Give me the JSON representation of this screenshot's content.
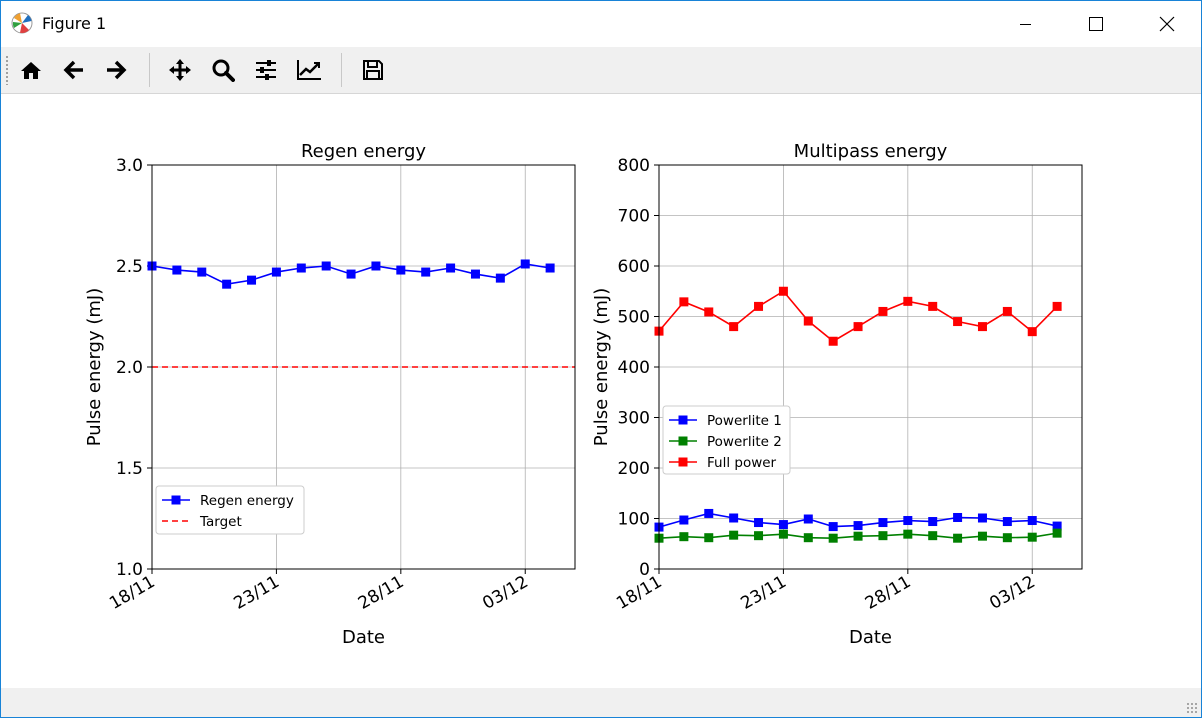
{
  "window": {
    "title": "Figure 1",
    "app_icon": "matplotlib-icon",
    "controls": [
      "minimize-icon",
      "maximize-icon",
      "close-icon"
    ]
  },
  "toolbar": {
    "buttons": [
      {
        "name": "home-button",
        "icon": "home-icon"
      },
      {
        "name": "back-button",
        "icon": "arrow-left-icon"
      },
      {
        "name": "forward-button",
        "icon": "arrow-right-icon"
      },
      {
        "name": "pan-button",
        "icon": "move-icon"
      },
      {
        "name": "zoom-button",
        "icon": "magnifier-icon"
      },
      {
        "name": "subplots-button",
        "icon": "sliders-icon"
      },
      {
        "name": "customize-button",
        "icon": "line-chart-icon"
      },
      {
        "name": "save-button",
        "icon": "floppy-disk-icon"
      }
    ]
  },
  "chart_data": [
    {
      "type": "line",
      "title": "Regen energy",
      "xlabel": "Date",
      "ylabel": "Pulse energy (mJ)",
      "x_ticks": [
        "18/11",
        "23/11",
        "28/11",
        "03/12"
      ],
      "x_start": "18/11",
      "x_end": "04/12",
      "ylim": [
        1.0,
        3.0
      ],
      "y_ticks": [
        "1.0",
        "1.5",
        "2.0",
        "2.5",
        "3.0"
      ],
      "grid": true,
      "legend_position": "lower-left",
      "x": [
        "18/11",
        "19/11",
        "20/11",
        "21/11",
        "22/11",
        "23/11",
        "24/11",
        "25/11",
        "26/11",
        "27/11",
        "28/11",
        "29/11",
        "30/11",
        "01/12",
        "02/12",
        "03/12",
        "04/12"
      ],
      "series": [
        {
          "name": "Regen energy",
          "color": "#0000ff",
          "style": "line-square",
          "values": [
            2.5,
            2.48,
            2.47,
            2.41,
            2.43,
            2.47,
            2.49,
            2.5,
            2.46,
            2.5,
            2.48,
            2.47,
            2.49,
            2.46,
            2.44,
            2.51,
            2.49
          ]
        }
      ],
      "reference_lines": [
        {
          "name": "Target",
          "color": "#ff0000",
          "style": "dashed",
          "y": 2.0
        }
      ]
    },
    {
      "type": "line",
      "title": "Multipass energy",
      "xlabel": "Date",
      "ylabel": "Pulse energy (mJ)",
      "x_ticks": [
        "18/11",
        "23/11",
        "28/11",
        "03/12"
      ],
      "x_start": "18/11",
      "x_end": "04/12",
      "ylim": [
        0,
        800
      ],
      "y_ticks": [
        "0",
        "100",
        "200",
        "300",
        "400",
        "500",
        "600",
        "700",
        "800"
      ],
      "grid": true,
      "legend_position": "center-left",
      "x": [
        "18/11",
        "19/11",
        "20/11",
        "21/11",
        "22/11",
        "23/11",
        "24/11",
        "25/11",
        "26/11",
        "27/11",
        "28/11",
        "29/11",
        "30/11",
        "01/12",
        "02/12",
        "03/12",
        "04/12"
      ],
      "series": [
        {
          "name": "Powerlite 1",
          "color": "#0000ff",
          "style": "line-square",
          "values": [
            83,
            97,
            110,
            101,
            92,
            88,
            99,
            84,
            86,
            92,
            96,
            94,
            102,
            101,
            94,
            96,
            85
          ]
        },
        {
          "name": "Powerlite 2",
          "color": "#008000",
          "style": "line-square",
          "values": [
            61,
            64,
            62,
            67,
            66,
            69,
            62,
            61,
            65,
            66,
            69,
            66,
            61,
            65,
            62,
            63,
            71
          ]
        },
        {
          "name": "Full power",
          "color": "#ff0000",
          "style": "line-square",
          "values": [
            471,
            529,
            509,
            480,
            520,
            550,
            491,
            451,
            480,
            510,
            530,
            520,
            490,
            480,
            510,
            470,
            520
          ]
        }
      ]
    }
  ]
}
